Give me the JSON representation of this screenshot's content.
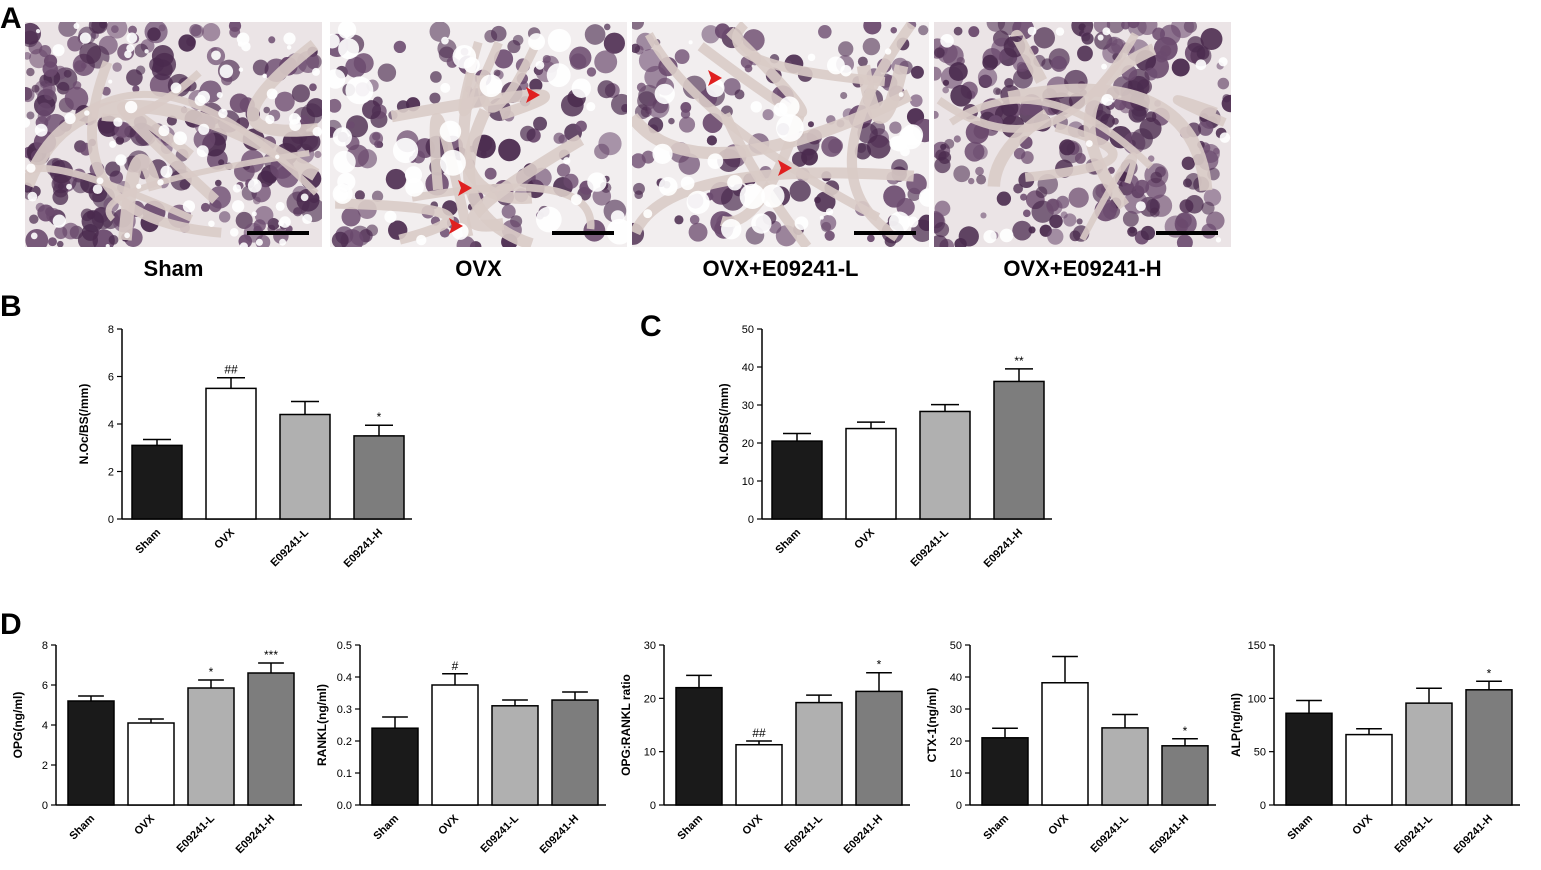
{
  "panels": {
    "A": "A",
    "B": "B",
    "C": "C",
    "D": "D"
  },
  "micrographs": [
    {
      "label": "Sham",
      "arrows": 0
    },
    {
      "label": "OVX",
      "arrows": 3
    },
    {
      "label": "OVX+E09241-L",
      "arrows": 2
    },
    {
      "label": "OVX+E09241-H",
      "arrows": 0
    }
  ],
  "colors": {
    "Sham": "#1a1a1a",
    "OVX": "#ffffff",
    "E09241-L": "#b0b0b0",
    "E09241-H": "#7d7d7d",
    "arrow": "#e02020"
  },
  "chart_data": [
    {
      "id": "B",
      "type": "bar",
      "ylabel": "N.Oc/BS(/mm)",
      "ylim": [
        0,
        8
      ],
      "yticks": [
        0,
        2,
        4,
        6,
        8
      ],
      "categories": [
        "Sham",
        "OVX",
        "E09241-L",
        "E09241-H"
      ],
      "values": [
        3.1,
        5.5,
        4.4,
        3.5
      ],
      "errors": [
        0.25,
        0.45,
        0.55,
        0.45
      ],
      "annotations": [
        "",
        "##",
        "",
        "*"
      ]
    },
    {
      "id": "C",
      "type": "bar",
      "ylabel": "N.Ob/BS(/mm)",
      "ylim": [
        0,
        50
      ],
      "yticks": [
        0,
        10,
        20,
        30,
        40,
        50
      ],
      "categories": [
        "Sham",
        "OVX",
        "E09241-L",
        "E09241-H"
      ],
      "values": [
        20.5,
        23.8,
        28.3,
        36.2
      ],
      "errors": [
        2.0,
        1.7,
        1.8,
        3.3
      ],
      "annotations": [
        "",
        "",
        "",
        "**"
      ]
    },
    {
      "id": "D1",
      "type": "bar",
      "ylabel": "OPG(ng/ml)",
      "ylim": [
        0,
        8
      ],
      "yticks": [
        0,
        2,
        4,
        6,
        8
      ],
      "categories": [
        "Sham",
        "OVX",
        "E09241-L",
        "E09241-H"
      ],
      "values": [
        5.2,
        4.1,
        5.85,
        6.6
      ],
      "errors": [
        0.25,
        0.2,
        0.4,
        0.5
      ],
      "annotations": [
        "",
        "",
        "*",
        "***"
      ]
    },
    {
      "id": "D2",
      "type": "bar",
      "ylabel": "RANKL(ng/ml)",
      "ylim": [
        0,
        0.5
      ],
      "yticks": [
        0.0,
        0.1,
        0.2,
        0.3,
        0.4,
        0.5
      ],
      "categories": [
        "Sham",
        "OVX",
        "E09241-L",
        "E09241-H"
      ],
      "values": [
        0.24,
        0.375,
        0.31,
        0.328
      ],
      "errors": [
        0.035,
        0.035,
        0.018,
        0.025
      ],
      "annotations": [
        "",
        "#",
        "",
        ""
      ]
    },
    {
      "id": "D3",
      "type": "bar",
      "ylabel": "OPG:RANKL ratio",
      "ylim": [
        0,
        30
      ],
      "yticks": [
        0,
        10,
        20,
        30
      ],
      "categories": [
        "Sham",
        "OVX",
        "E09241-L",
        "E09241-H"
      ],
      "values": [
        22.0,
        11.3,
        19.2,
        21.3
      ],
      "errors": [
        2.3,
        0.7,
        1.4,
        3.5
      ],
      "annotations": [
        "",
        "##",
        "",
        "*"
      ]
    },
    {
      "id": "D4",
      "type": "bar",
      "ylabel": "CTX-1(ng/ml)",
      "ylim": [
        0,
        50
      ],
      "yticks": [
        0,
        10,
        20,
        30,
        40,
        50
      ],
      "categories": [
        "Sham",
        "OVX",
        "E09241-L",
        "E09241-H"
      ],
      "values": [
        21.0,
        38.2,
        24.1,
        18.5
      ],
      "errors": [
        3.0,
        8.2,
        4.2,
        2.2
      ],
      "annotations": [
        "",
        "",
        "",
        "*"
      ]
    },
    {
      "id": "D5",
      "type": "bar",
      "ylabel": "ALP(ng/ml)",
      "ylim": [
        0,
        150
      ],
      "yticks": [
        0,
        50,
        100,
        150
      ],
      "categories": [
        "Sham",
        "OVX",
        "E09241-L",
        "E09241-H"
      ],
      "values": [
        86.0,
        66.0,
        95.5,
        108.0
      ],
      "errors": [
        12.0,
        5.5,
        14.0,
        8.0
      ],
      "annotations": [
        "",
        "",
        "",
        "*"
      ]
    }
  ]
}
